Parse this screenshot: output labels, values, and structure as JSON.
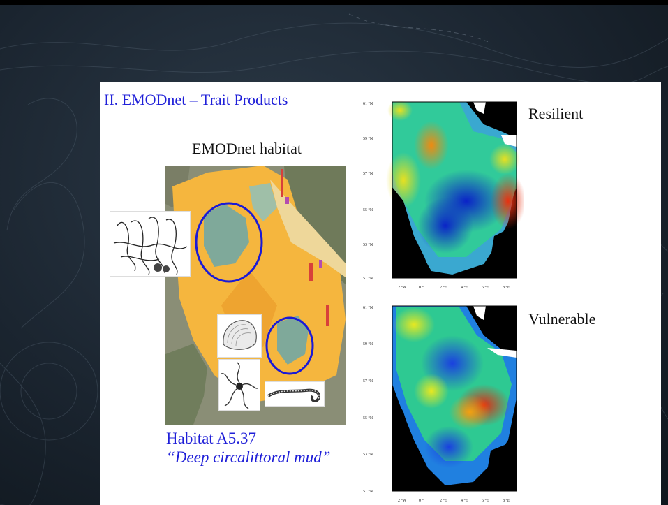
{
  "slide": {
    "title": "II. EMODnet – Trait Products",
    "habitat_heading": "EMODnet habitat",
    "caption_line1": "Habitat A5.37",
    "caption_line2": "“Deep circalittoral mud”"
  },
  "maps": [
    {
      "label": "Resilient",
      "lat_ticks": [
        "61 °N",
        "59 °N",
        "57 °N",
        "55 °N",
        "53 °N",
        "51 °N"
      ],
      "lon_ticks": [
        "2 °W",
        "0 °",
        "2 °E",
        "4 °E",
        "6 °E",
        "8 °E"
      ]
    },
    {
      "label": "Vulnerable",
      "lat_ticks": [
        "61 °N",
        "59 °N",
        "57 °N",
        "55 °N",
        "53 °N",
        "51 °N"
      ],
      "lon_ticks": [
        "2 °W",
        "0 °",
        "2 °E",
        "4 °E",
        "6 °E",
        "8 °E"
      ]
    }
  ],
  "colors": {
    "title_blue": "#1f1fd8",
    "circle_blue": "#1a1ad6",
    "habitat_orange": "#f5b63e",
    "habitat_teal": "#7fa99a"
  },
  "icons": [
    "tube-worm-illustration-icon",
    "bivalve-shell-illustration-icon",
    "brittle-star-illustration-icon",
    "worm-illustration-icon"
  ]
}
